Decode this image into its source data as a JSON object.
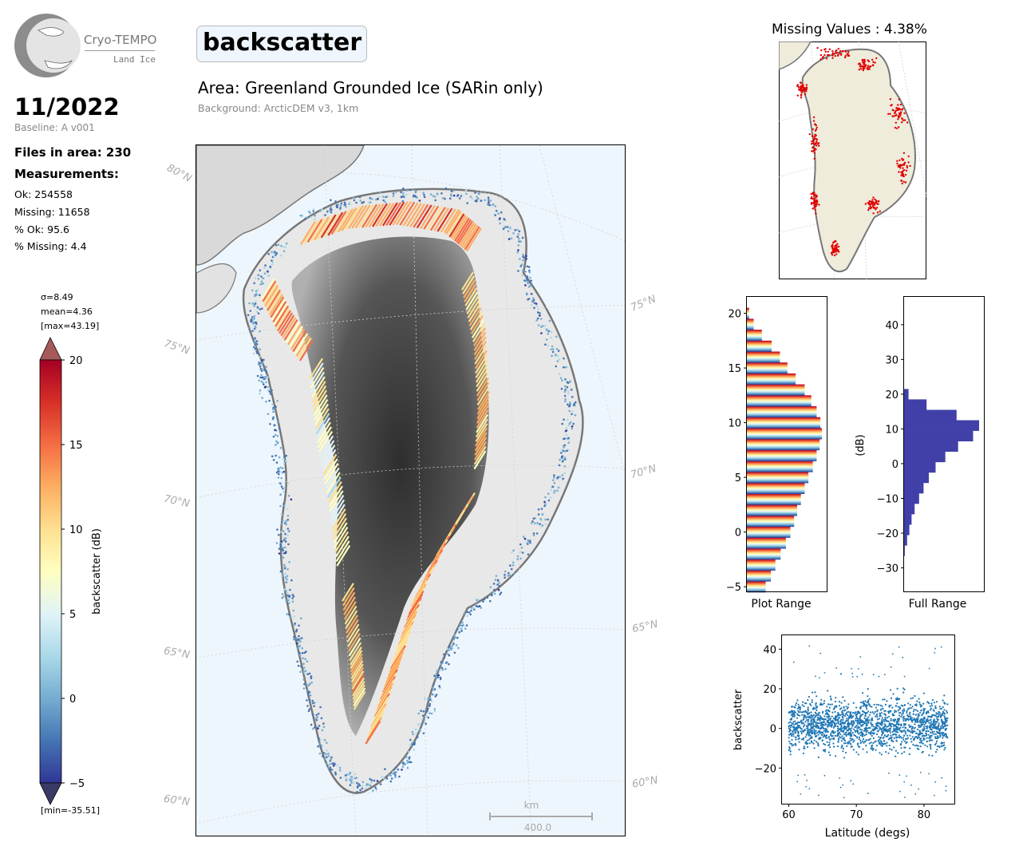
{
  "logo": {
    "name": "Cryo-TEMPO",
    "sub": "Land Ice"
  },
  "header": {
    "date": "11/2022",
    "baseline": "Baseline: A v001",
    "parameter": "backscatter",
    "area": "Area: Greenland Grounded Ice (SARin only)",
    "background": "Background: ArcticDEM v3, 1km"
  },
  "stats": {
    "files": "Files in area: 230",
    "measurements_label": "Measurements:",
    "ok": "Ok: 254558",
    "missing": "Missing: 11658",
    "pct_ok": "% Ok: 95.6",
    "pct_missing": "% Missing: 4.4"
  },
  "colorbar": {
    "sigma": "σ=8.49",
    "mean": "mean=4.36",
    "max": "[max=43.19]",
    "min": "[min=-35.51]",
    "label": "backscatter (dB)",
    "range": [
      -5,
      20
    ],
    "ticks": [
      "20",
      "15",
      "10",
      "5",
      "0",
      "−5"
    ],
    "cmap": [
      "#313695",
      "#4575b4",
      "#74add1",
      "#abd9e9",
      "#e0f3f8",
      "#ffffbf",
      "#fee090",
      "#fdae61",
      "#f46d43",
      "#d73027",
      "#a50026"
    ]
  },
  "map": {
    "lat_labels_left": [
      "80°N",
      "75°N",
      "70°N",
      "65°N",
      "60°N"
    ],
    "lat_labels_right": [
      "75°N",
      "70°N",
      "65°N",
      "60°N"
    ],
    "scale_unit": "km",
    "scale_value": "400.0"
  },
  "missing_map": {
    "title": "Missing Values : 4.38%",
    "missing_color": "#e00000",
    "land_color": "#efecdc"
  },
  "chart_data": [
    {
      "type": "bar",
      "orientation": "horizontal",
      "xlabel": "Plot Range",
      "ylabel": "",
      "ylim": [
        -5.5,
        21.5
      ],
      "yticks": [
        "20",
        "15",
        "10",
        "5",
        "0",
        "−5"
      ],
      "bin_centers": [
        -5,
        -4,
        -3,
        -2,
        -1,
        0,
        1,
        2,
        3,
        4,
        5,
        6,
        7,
        8,
        9,
        10,
        11,
        12,
        13,
        14,
        15,
        16,
        17,
        18,
        19,
        20
      ],
      "values": [
        25,
        32,
        38,
        45,
        52,
        58,
        63,
        67,
        72,
        77,
        82,
        88,
        93,
        97,
        100,
        98,
        93,
        86,
        77,
        65,
        54,
        44,
        33,
        20,
        9,
        3
      ]
    },
    {
      "type": "bar",
      "orientation": "horizontal",
      "xlabel": "Full Range",
      "ylabel": "(dB)",
      "ylim": [
        -37,
        48
      ],
      "yticks": [
        "40",
        "30",
        "20",
        "10",
        "0",
        "−10",
        "−20",
        "−30"
      ],
      "bin_centers": [
        -25,
        -22,
        -19,
        -16,
        -13,
        -10,
        -7,
        -4,
        -1,
        2,
        5,
        8,
        11,
        14,
        17,
        20
      ],
      "values": [
        1,
        4,
        7,
        10,
        14,
        20,
        26,
        33,
        42,
        55,
        72,
        92,
        100,
        70,
        30,
        6
      ]
    },
    {
      "type": "scatter",
      "xlabel": "Latitude (degs)",
      "ylabel": "backscatter",
      "xlim": [
        59,
        84.5
      ],
      "ylim": [
        -38,
        47
      ],
      "xticks": [
        "60",
        "70",
        "80"
      ],
      "yticks": [
        "40",
        "20",
        "0",
        "−20"
      ],
      "color": "#1f77b4",
      "band": {
        "x_range": [
          60,
          83.5
        ],
        "mean": 2,
        "spread": 22
      }
    }
  ]
}
